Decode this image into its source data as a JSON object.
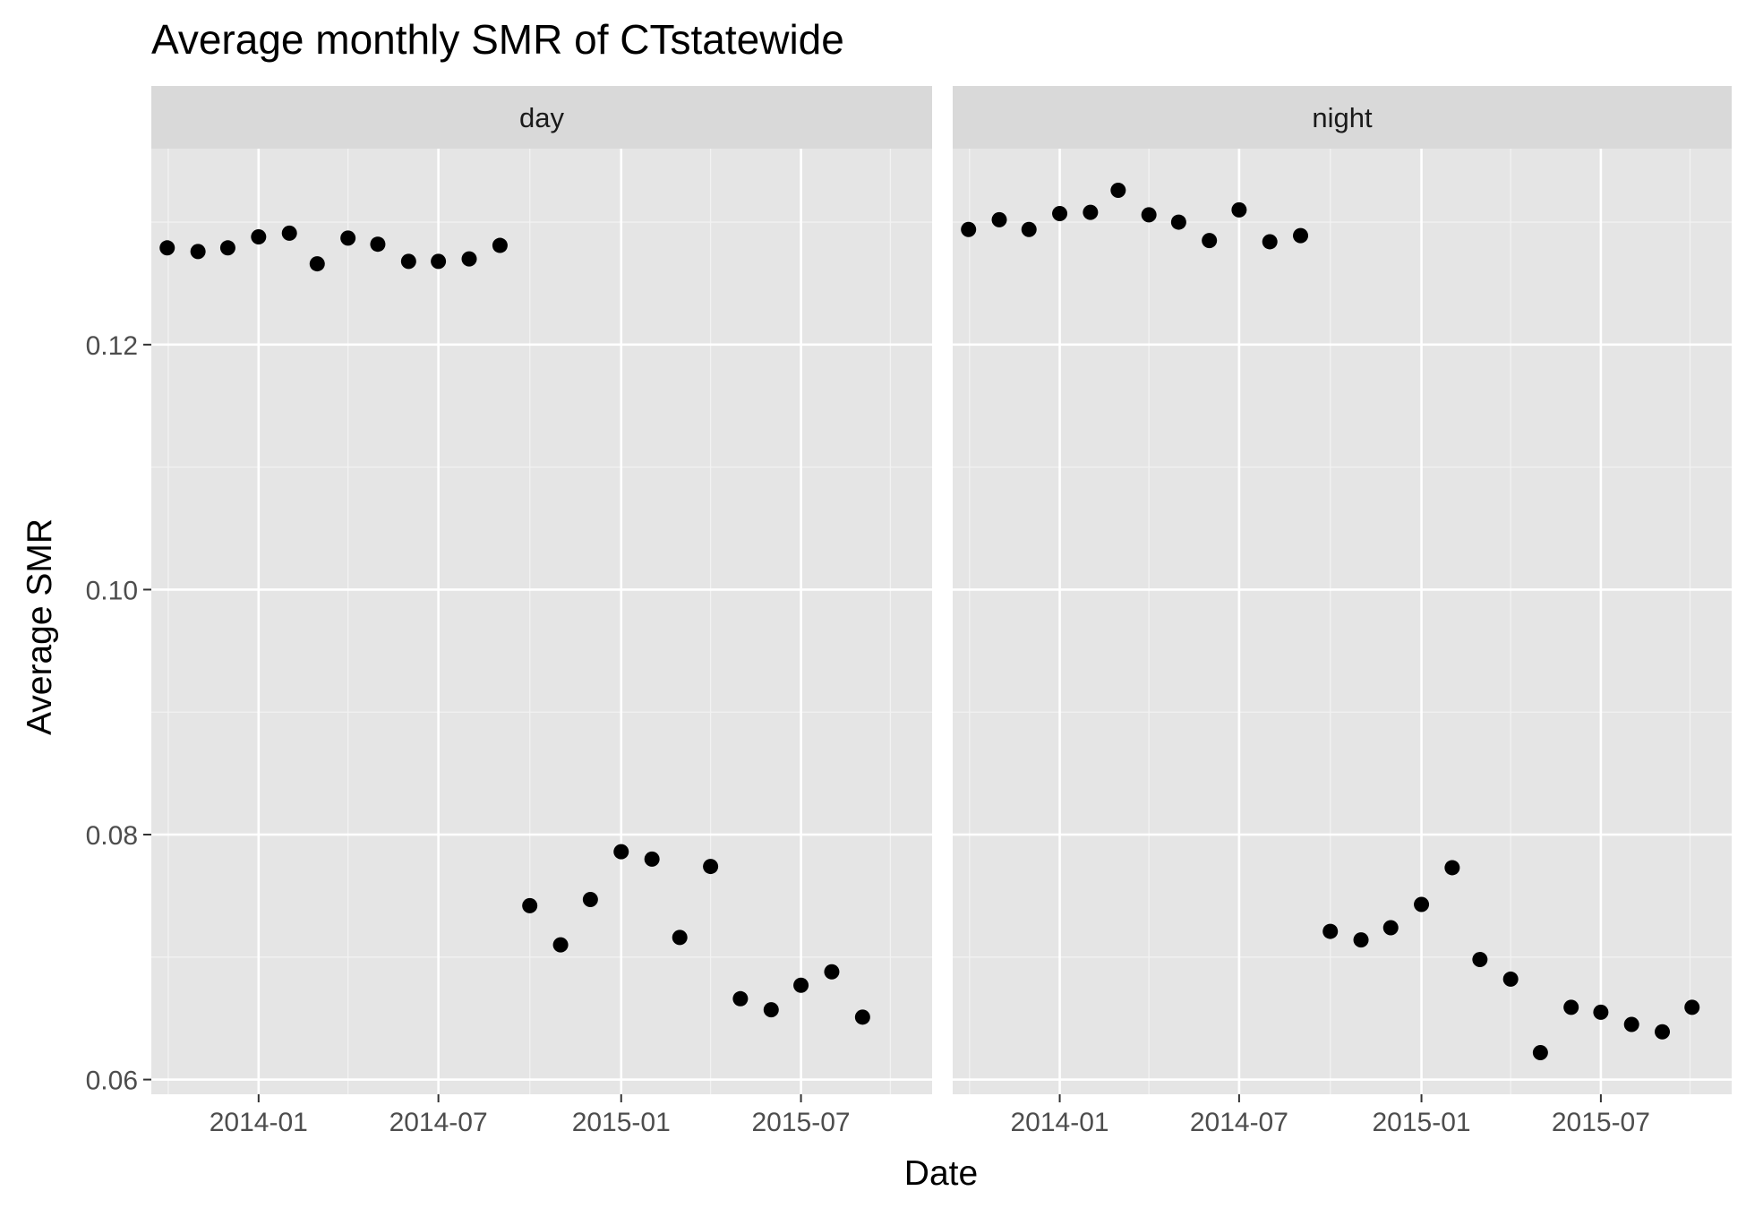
{
  "chart_data": {
    "type": "scatter",
    "title": "Average monthly SMR of CTstatewide",
    "xlabel": "Date",
    "ylabel": "Average SMR",
    "x_axis_type": "date",
    "xlim": [
      "2013-09-15",
      "2015-11-10"
    ],
    "ylim": [
      0.0588,
      0.136
    ],
    "y_ticks": [
      0.06,
      0.08,
      0.1,
      0.12
    ],
    "y_tick_labels": [
      "0.06",
      "0.08",
      "0.10",
      "0.12"
    ],
    "x_ticks": [
      "2014-01-01",
      "2014-07-01",
      "2015-01-01",
      "2015-07-01"
    ],
    "x_tick_labels": [
      "2014-01",
      "2014-07",
      "2015-01",
      "2015-07"
    ],
    "grid": true,
    "legend": "none",
    "point_color": "#000000",
    "panel_background": "#e5e5e5",
    "strip_background": "#d9d9d9",
    "facets": [
      {
        "label": "day",
        "points": [
          {
            "x": "2013-10-01",
            "y": 0.1279
          },
          {
            "x": "2013-11-01",
            "y": 0.1276
          },
          {
            "x": "2013-12-01",
            "y": 0.1279
          },
          {
            "x": "2014-01-01",
            "y": 0.1288
          },
          {
            "x": "2014-02-01",
            "y": 0.1291
          },
          {
            "x": "2014-03-01",
            "y": 0.1266
          },
          {
            "x": "2014-04-01",
            "y": 0.1287
          },
          {
            "x": "2014-05-01",
            "y": 0.1282
          },
          {
            "x": "2014-06-01",
            "y": 0.1268
          },
          {
            "x": "2014-07-01",
            "y": 0.1268
          },
          {
            "x": "2014-08-01",
            "y": 0.127
          },
          {
            "x": "2014-09-01",
            "y": 0.1281
          },
          {
            "x": "2014-10-01",
            "y": 0.0742
          },
          {
            "x": "2014-11-01",
            "y": 0.071
          },
          {
            "x": "2014-12-01",
            "y": 0.0747
          },
          {
            "x": "2015-01-01",
            "y": 0.0786
          },
          {
            "x": "2015-02-01",
            "y": 0.078
          },
          {
            "x": "2015-03-01",
            "y": 0.0716
          },
          {
            "x": "2015-04-01",
            "y": 0.0774
          },
          {
            "x": "2015-05-01",
            "y": 0.0666
          },
          {
            "x": "2015-06-01",
            "y": 0.0657
          },
          {
            "x": "2015-07-01",
            "y": 0.0677
          },
          {
            "x": "2015-08-01",
            "y": 0.0688
          },
          {
            "x": "2015-09-01",
            "y": 0.0651
          }
        ]
      },
      {
        "label": "night",
        "points": [
          {
            "x": "2013-10-01",
            "y": 0.1294
          },
          {
            "x": "2013-11-01",
            "y": 0.1302
          },
          {
            "x": "2013-12-01",
            "y": 0.1294
          },
          {
            "x": "2014-01-01",
            "y": 0.1307
          },
          {
            "x": "2014-02-01",
            "y": 0.1308
          },
          {
            "x": "2014-03-01",
            "y": 0.1326
          },
          {
            "x": "2014-04-01",
            "y": 0.1306
          },
          {
            "x": "2014-05-01",
            "y": 0.13
          },
          {
            "x": "2014-06-01",
            "y": 0.1285
          },
          {
            "x": "2014-07-01",
            "y": 0.131
          },
          {
            "x": "2014-08-01",
            "y": 0.1284
          },
          {
            "x": "2014-09-01",
            "y": 0.1289
          },
          {
            "x": "2014-10-01",
            "y": 0.0721
          },
          {
            "x": "2014-11-01",
            "y": 0.0714
          },
          {
            "x": "2014-12-01",
            "y": 0.0724
          },
          {
            "x": "2015-01-01",
            "y": 0.0743
          },
          {
            "x": "2015-02-01",
            "y": 0.0773
          },
          {
            "x": "2015-03-01",
            "y": 0.0698
          },
          {
            "x": "2015-04-01",
            "y": 0.0682
          },
          {
            "x": "2015-05-01",
            "y": 0.0622
          },
          {
            "x": "2015-06-01",
            "y": 0.0659
          },
          {
            "x": "2015-07-01",
            "y": 0.0655
          },
          {
            "x": "2015-08-01",
            "y": 0.0645
          },
          {
            "x": "2015-09-01",
            "y": 0.0639
          },
          {
            "x": "2015-10-01",
            "y": 0.0659
          }
        ]
      }
    ]
  }
}
